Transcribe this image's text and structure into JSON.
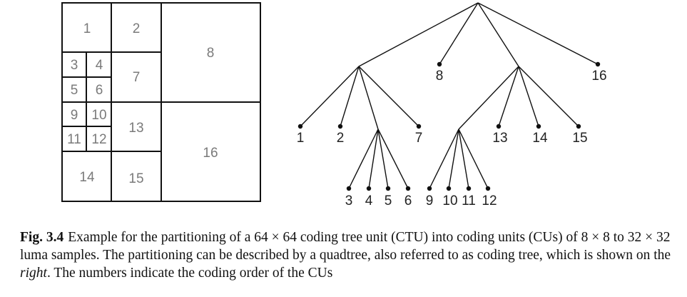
{
  "ctu": {
    "labels": [
      "1",
      "2",
      "3",
      "4",
      "5",
      "6",
      "7",
      "8",
      "9",
      "10",
      "11",
      "12",
      "13",
      "14",
      "15",
      "16"
    ]
  },
  "tree": {
    "labels": [
      "1",
      "2",
      "3",
      "4",
      "5",
      "6",
      "7",
      "8",
      "9",
      "10",
      "11",
      "12",
      "13",
      "14",
      "15",
      "16"
    ]
  },
  "caption": {
    "fig_number": "Fig. 3.4",
    "text_part1": "Example for the partitioning of a 64 × 64 coding tree unit (CTU) into coding units (CUs) of 8 × 8 to 32 × 32 luma samples. The partitioning can be described by a quadtree, also referred to as coding tree, which is shown on the ",
    "text_italic": "right",
    "text_part2": ". The numbers indicate the coding order of the CUs"
  }
}
